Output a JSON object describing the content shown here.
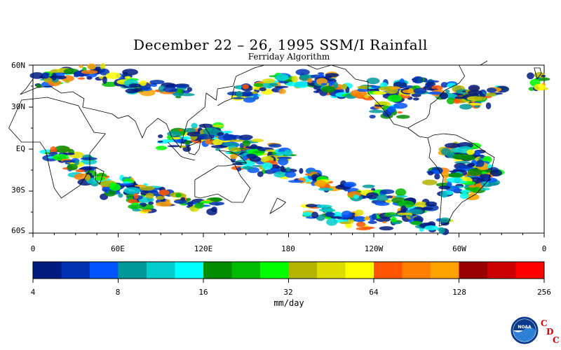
{
  "title": "December 22 – 26, 1995 SSM/I Rainfall",
  "subtitle": "Ferriday Algorithm",
  "lat_labels": [
    "60N",
    "30N",
    "EQ",
    "30S",
    "60S"
  ],
  "lon_labels": [
    "0",
    "60E",
    "120E",
    "180",
    "120W",
    "60W",
    "0"
  ],
  "colorbar": {
    "unit": "mm/day",
    "tick_labels": [
      "4",
      "8",
      "16",
      "32",
      "64",
      "128",
      "256"
    ],
    "colors": [
      "#001a80",
      "#0033b3",
      "#0055ff",
      "#009999",
      "#00cccc",
      "#00ffff",
      "#008c00",
      "#00bb00",
      "#00ff00",
      "#b3b300",
      "#dddd00",
      "#ffff00",
      "#ff5500",
      "#ff7f00",
      "#ffa200",
      "#990000",
      "#cc0000",
      "#ff0000"
    ]
  },
  "logo": {
    "icon": "noaa-logo-icon",
    "text": "NOAA",
    "letters": [
      "C",
      "D",
      "C"
    ]
  }
}
